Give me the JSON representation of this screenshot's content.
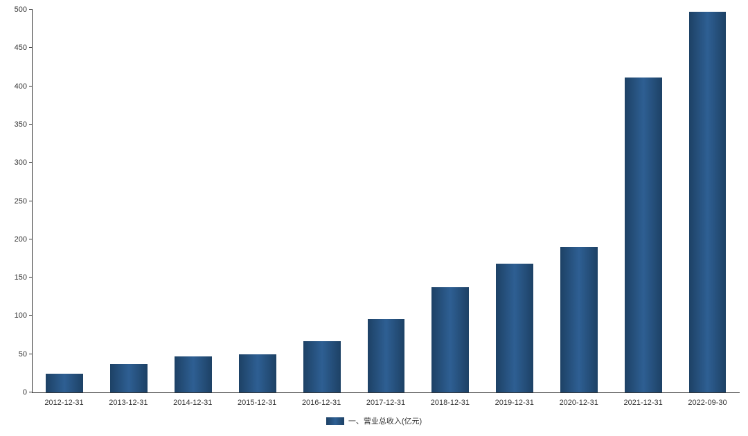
{
  "chart_data": {
    "type": "bar",
    "title": "",
    "categories": [
      "2012-12-31",
      "2013-12-31",
      "2014-12-31",
      "2015-12-31",
      "2016-12-31",
      "2017-12-31",
      "2018-12-31",
      "2019-12-31",
      "2020-12-31",
      "2021-12-31",
      "2022-09-30"
    ],
    "values": [
      24,
      37,
      47,
      50,
      67,
      96,
      137,
      168,
      190,
      411,
      497
    ],
    "series_name": "一、营业总收入(亿元)",
    "legend_label": "一、营业总收入(亿元)",
    "xlabel": "",
    "ylabel": "",
    "ylim": [
      0,
      500
    ],
    "y_tick_step": 50,
    "y_tick_labels": [
      "0",
      "50",
      "100",
      "150",
      "200",
      "250",
      "300",
      "350",
      "400",
      "450",
      "500"
    ],
    "grid": false,
    "legend_position": "bottom",
    "bar_color": "#25527f",
    "bar_color_edge": "#1d4165",
    "bar_color_center": "#2e5f93",
    "axis_color": "#333333",
    "label_color": "#333333",
    "background_color": "#ffffff"
  }
}
